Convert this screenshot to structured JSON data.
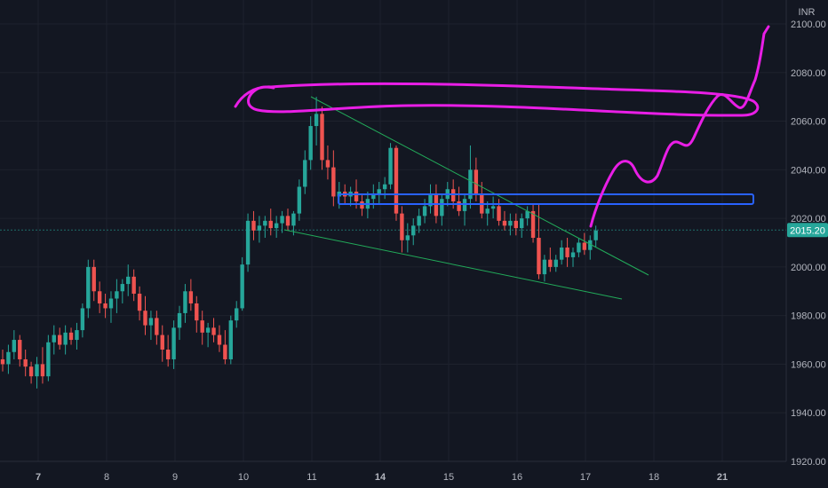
{
  "chart_data": {
    "type": "candlestick",
    "currency_label": "INR",
    "ylim": [
      1920,
      2105
    ],
    "y_ticks": [
      "2100.00",
      "2080.00",
      "2060.00",
      "2040.00",
      "2020.00",
      "2000.00",
      "1980.00",
      "1960.00",
      "1940.00",
      "1920.00"
    ],
    "x_ticks": [
      {
        "label": "7",
        "bold": true
      },
      {
        "label": "8",
        "bold": false
      },
      {
        "label": "9",
        "bold": false
      },
      {
        "label": "10",
        "bold": false
      },
      {
        "label": "11",
        "bold": false
      },
      {
        "label": "14",
        "bold": true
      },
      {
        "label": "15",
        "bold": false
      },
      {
        "label": "16",
        "bold": false
      },
      {
        "label": "17",
        "bold": false
      },
      {
        "label": "18",
        "bold": false
      },
      {
        "label": "21",
        "bold": true
      }
    ],
    "last_price": "2015.20",
    "colors": {
      "background": "#131722",
      "grid": "#1e222d",
      "up": "#26a69a",
      "down": "#ef5350",
      "trendline": "#22ab5a",
      "zone_border": "#2962ff",
      "drawing": "#e91ee6",
      "price_badge": "#26a69a",
      "axis_text": "#b2b5be"
    },
    "candles": [
      [
        1962,
        1966,
        1957,
        1960
      ],
      [
        1960,
        1968,
        1956,
        1965
      ],
      [
        1965,
        1974,
        1962,
        1970
      ],
      [
        1970,
        1972,
        1959,
        1962
      ],
      [
        1962,
        1966,
        1955,
        1959
      ],
      [
        1959,
        1961,
        1952,
        1955
      ],
      [
        1955,
        1963,
        1950,
        1960
      ],
      [
        1960,
        1967,
        1952,
        1955
      ],
      [
        1955,
        1972,
        1953,
        1969
      ],
      [
        1969,
        1976,
        1964,
        1972
      ],
      [
        1972,
        1975,
        1966,
        1968
      ],
      [
        1968,
        1976,
        1964,
        1973
      ],
      [
        1973,
        1975,
        1968,
        1970
      ],
      [
        1970,
        1977,
        1966,
        1974
      ],
      [
        1974,
        1985,
        1971,
        1983
      ],
      [
        1983,
        2003,
        1979,
        2000
      ],
      [
        2000,
        2003,
        1986,
        1990
      ],
      [
        1990,
        1994,
        1981,
        1985
      ],
      [
        1985,
        1989,
        1979,
        1983
      ],
      [
        1983,
        1990,
        1977,
        1987
      ],
      [
        1987,
        1995,
        1981,
        1990
      ],
      [
        1990,
        1995,
        1985,
        1993
      ],
      [
        1993,
        2001,
        1988,
        1996
      ],
      [
        1996,
        1999,
        1986,
        1989
      ],
      [
        1989,
        1992,
        1978,
        1982
      ],
      [
        1982,
        1988,
        1972,
        1976
      ],
      [
        1976,
        1982,
        1970,
        1979
      ],
      [
        1979,
        1982,
        1968,
        1972
      ],
      [
        1972,
        1976,
        1961,
        1966
      ],
      [
        1966,
        1972,
        1959,
        1962
      ],
      [
        1962,
        1978,
        1958,
        1975
      ],
      [
        1975,
        1984,
        1970,
        1981
      ],
      [
        1981,
        1993,
        1977,
        1990
      ],
      [
        1990,
        1995,
        1982,
        1985
      ],
      [
        1985,
        1988,
        1973,
        1978
      ],
      [
        1978,
        1982,
        1968,
        1973
      ],
      [
        1973,
        1977,
        1967,
        1975
      ],
      [
        1975,
        1979,
        1969,
        1972
      ],
      [
        1972,
        1976,
        1965,
        1968
      ],
      [
        1968,
        1974,
        1960,
        1962
      ],
      [
        1962,
        1980,
        1960,
        1978
      ],
      [
        1978,
        1986,
        1975,
        1983
      ],
      [
        1983,
        2004,
        1982,
        2001
      ],
      [
        2001,
        2022,
        1998,
        2019
      ],
      [
        2019,
        2023,
        2011,
        2015
      ],
      [
        2015,
        2021,
        2010,
        2017
      ],
      [
        2017,
        2021,
        2012,
        2019
      ],
      [
        2019,
        2024,
        2013,
        2016
      ],
      [
        2016,
        2021,
        2012,
        2018
      ],
      [
        2018,
        2023,
        2014,
        2021
      ],
      [
        2021,
        2024,
        2015,
        2017
      ],
      [
        2017,
        2023,
        2013,
        2022
      ],
      [
        2022,
        2036,
        2019,
        2033
      ],
      [
        2033,
        2048,
        2030,
        2044
      ],
      [
        2044,
        2062,
        2040,
        2058
      ],
      [
        2058,
        2070,
        2050,
        2063
      ],
      [
        2063,
        2066,
        2040,
        2044
      ],
      [
        2044,
        2050,
        2036,
        2041
      ],
      [
        2041,
        2048,
        2025,
        2029
      ],
      [
        2029,
        2035,
        2024,
        2031
      ],
      [
        2031,
        2034,
        2026,
        2029
      ],
      [
        2029,
        2033,
        2025,
        2031
      ],
      [
        2031,
        2036,
        2024,
        2027
      ],
      [
        2027,
        2030,
        2021,
        2024
      ],
      [
        2024,
        2031,
        2020,
        2028
      ],
      [
        2028,
        2034,
        2024,
        2030
      ],
      [
        2030,
        2035,
        2026,
        2032
      ],
      [
        2032,
        2037,
        2028,
        2034
      ],
      [
        2034,
        2051,
        2032,
        2049
      ],
      [
        2049,
        2050,
        2019,
        2022
      ],
      [
        2022,
        2025,
        2006,
        2011
      ],
      [
        2011,
        2018,
        2006,
        2013
      ],
      [
        2013,
        2020,
        2009,
        2017
      ],
      [
        2017,
        2024,
        2014,
        2021
      ],
      [
        2021,
        2028,
        2018,
        2025
      ],
      [
        2025,
        2034,
        2022,
        2030
      ],
      [
        2030,
        2034,
        2018,
        2021
      ],
      [
        2021,
        2030,
        2017,
        2028
      ],
      [
        2028,
        2035,
        2025,
        2032
      ],
      [
        2032,
        2036,
        2024,
        2027
      ],
      [
        2027,
        2033,
        2021,
        2023
      ],
      [
        2023,
        2030,
        2017,
        2028
      ],
      [
        2028,
        2050,
        2024,
        2040
      ],
      [
        2040,
        2045,
        2027,
        2030
      ],
      [
        2030,
        2035,
        2020,
        2022
      ],
      [
        2022,
        2027,
        2017,
        2024
      ],
      [
        2024,
        2029,
        2020,
        2025
      ],
      [
        2025,
        2028,
        2017,
        2019
      ],
      [
        2019,
        2023,
        2015,
        2017
      ],
      [
        2017,
        2022,
        2013,
        2019
      ],
      [
        2019,
        2022,
        2013,
        2016
      ],
      [
        2016,
        2022,
        2012,
        2020
      ],
      [
        2020,
        2025,
        2017,
        2023
      ],
      [
        2023,
        2026,
        2010,
        2012
      ],
      [
        2012,
        2026,
        1995,
        1997
      ],
      [
        1997,
        2005,
        1994,
        2003
      ],
      [
        2003,
        2008,
        1998,
        2000
      ],
      [
        2000,
        2005,
        1998,
        2003
      ],
      [
        2003,
        2011,
        2001,
        2008
      ],
      [
        2008,
        2012,
        2000,
        2004
      ],
      [
        2004,
        2008,
        2000,
        2006
      ],
      [
        2006,
        2012,
        2004,
        2010
      ],
      [
        2010,
        2014,
        2005,
        2007
      ],
      [
        2007,
        2013,
        2003,
        2011
      ],
      [
        2011,
        2017,
        2008,
        2015
      ]
    ]
  }
}
